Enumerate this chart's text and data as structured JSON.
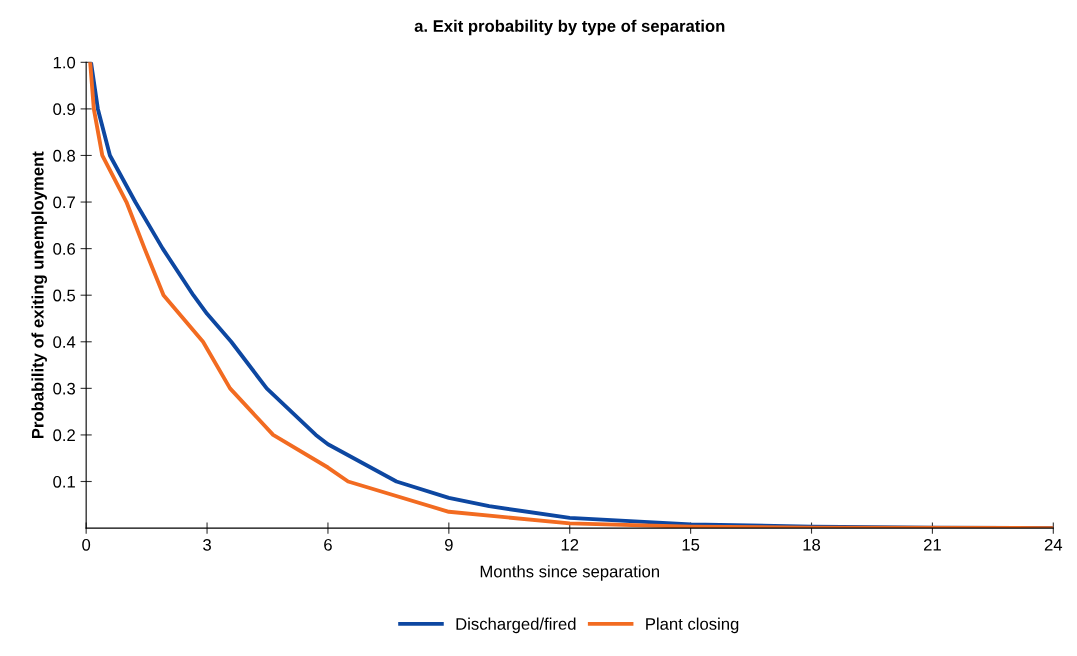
{
  "chart_data": {
    "type": "line",
    "title": "a. Exit probability by type of separation",
    "xlabel": "Months since separation",
    "ylabel": "Probability of exiting unemployment",
    "xlim": [
      0,
      24
    ],
    "xticks": [
      0,
      3,
      6,
      9,
      12,
      15,
      18,
      21,
      24
    ],
    "ylim": [
      0,
      1.0
    ],
    "yticks": [
      0.1,
      0.2,
      0.3,
      0.4,
      0.5,
      0.6,
      0.7,
      0.8,
      0.9,
      {
        "value": 1.0,
        "label": "1.0"
      }
    ],
    "grid": false,
    "legend": "bottom",
    "marker": "none",
    "line_style": "solid",
    "series": [
      {
        "name": "Discharged/fired",
        "color": "#0d47a1",
        "x": [
          0.12,
          0.29,
          0.59,
          1.22,
          1.9,
          2.66,
          3,
          3.6,
          4.48,
          5.7,
          6,
          7.7,
          9,
          10,
          12,
          15,
          18,
          21,
          24
        ],
        "values": [
          1.0,
          0.9,
          0.8,
          0.7,
          0.6,
          0.5,
          0.46,
          0.4,
          0.3,
          0.2,
          0.18,
          0.1,
          0.065,
          0.047,
          0.022,
          0.008,
          0.003,
          0.001,
          0.0
        ]
      },
      {
        "name": "Plant closing",
        "color": "#f26b21",
        "x": [
          0.1,
          0.19,
          0.4,
          1.0,
          1.45,
          1.92,
          2.9,
          3.57,
          4.64,
          6,
          6.5,
          9,
          12,
          15,
          18,
          24
        ],
        "values": [
          1.0,
          0.9,
          0.8,
          0.7,
          0.6,
          0.5,
          0.4,
          0.3,
          0.2,
          0.13,
          0.1,
          0.035,
          0.01,
          0.003,
          0.001,
          0.0
        ]
      }
    ]
  }
}
